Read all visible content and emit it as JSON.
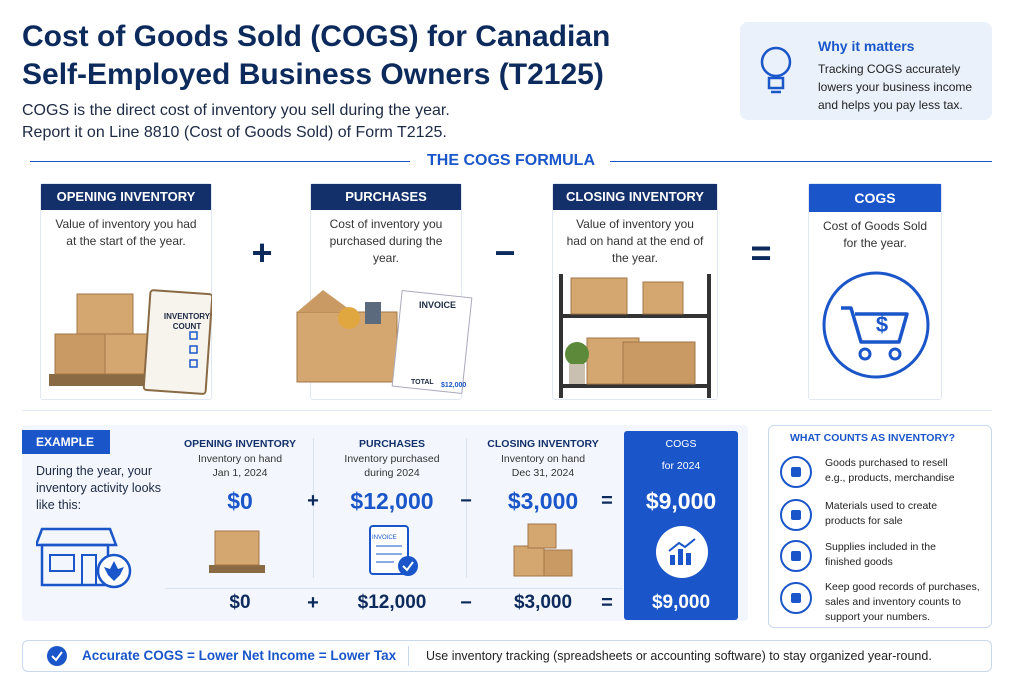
{
  "header": {
    "title": [
      "Cost of Goods Sold (COGS) for Canadian",
      "Self-Employed Business Owners (T2125)"
    ],
    "subtitle": [
      "COGS is the direct cost of inventory you sell during the year.",
      "Report it on Line 8810 (Cost of Goods Sold) of Form T2125."
    ]
  },
  "why": {
    "title": "Why it matters",
    "text": "Tracking COGS accurately lowers your business income and helps you pay less tax."
  },
  "formula": {
    "heading": "THE COGS FORMULA",
    "cards": [
      {
        "title": "OPENING INVENTORY",
        "text": "Value of inventory you had at the start of the year."
      },
      {
        "title": "PURCHASES",
        "text": "Cost of inventory you purchased during the year."
      },
      {
        "title": "CLOSING INVENTORY",
        "text": "Value of inventory you had on hand at the end of the year."
      },
      {
        "title": "COGS",
        "text": "Cost of Goods Sold for the year."
      }
    ],
    "operators": [
      "+",
      "−",
      "="
    ],
    "illustration": {
      "count_label": "INVENTORY COUNT",
      "invoice_label": "INVOICE",
      "total_label": "TOTAL",
      "total_amount": "$12,000"
    }
  },
  "example": {
    "label": "EXAMPLE",
    "intro": "During the year, your inventory activity looks like this:",
    "columns": [
      {
        "title": "OPENING INVENTORY",
        "sub": [
          "Inventory on hand",
          "Jan 1, 2024"
        ],
        "amount": "$0"
      },
      {
        "title": "PURCHASES",
        "sub": [
          "Inventory purchased",
          "during 2024"
        ],
        "amount": "$12,000"
      },
      {
        "title": "CLOSING INVENTORY",
        "sub": [
          "Inventory on hand",
          "Dec 31, 2024"
        ],
        "amount": "$3,000"
      },
      {
        "title": "COGS",
        "sub": [
          "for 2024"
        ],
        "amount": "$9,000"
      }
    ],
    "operators": [
      "+",
      "−",
      "="
    ],
    "invoice_label": "INVOICE"
  },
  "inventory": {
    "title": "WHAT COUNTS AS INVENTORY?",
    "items": [
      [
        "Goods purchased to resell",
        "e.g., products, merchandise"
      ],
      [
        "Materials used to create",
        "products for sale"
      ],
      [
        "Supplies included in the",
        "finished goods"
      ],
      [
        "Keep good records of purchases,",
        "sales and inventory counts to",
        "support your numbers."
      ]
    ]
  },
  "footer": {
    "left": "Accurate COGS = Lower Net Income = Lower Tax",
    "right": "Use inventory tracking (spreadsheets or accounting software) to stay organized year-round."
  }
}
